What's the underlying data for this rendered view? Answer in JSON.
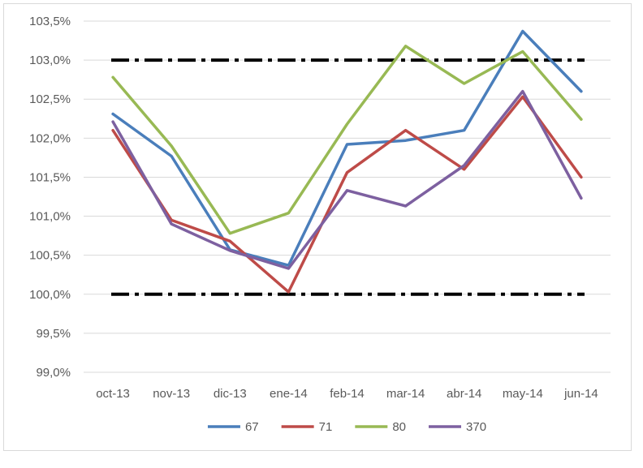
{
  "chart_data": {
    "type": "line",
    "title": "",
    "xlabel": "",
    "ylabel": "",
    "categories": [
      "oct-13",
      "nov-13",
      "dic-13",
      "ene-14",
      "feb-14",
      "mar-14",
      "abr-14",
      "may-14",
      "jun-14"
    ],
    "ylim": [
      99.0,
      103.5
    ],
    "yticks": [
      99.0,
      99.5,
      100.0,
      100.5,
      101.0,
      101.5,
      102.0,
      102.5,
      103.0,
      103.5
    ],
    "ytick_labels": [
      "99,0%",
      "99,5%",
      "100,0%",
      "100,5%",
      "101,0%",
      "101,5%",
      "102,0%",
      "102,5%",
      "103,0%",
      "103,5%"
    ],
    "grid": true,
    "legend_position": "bottom",
    "reference_lines": [
      {
        "value": 103.0,
        "color": "#000000",
        "style": "dash-dot"
      },
      {
        "value": 100.0,
        "color": "#000000",
        "style": "dash-dot"
      }
    ],
    "series": [
      {
        "name": "67",
        "color": "#4a7ebb",
        "values": [
          102.31,
          101.77,
          100.57,
          100.37,
          101.92,
          101.97,
          102.1,
          103.37,
          102.6
        ]
      },
      {
        "name": "71",
        "color": "#be4b48",
        "values": [
          102.1,
          100.95,
          100.68,
          100.03,
          101.56,
          102.1,
          101.6,
          102.53,
          101.5
        ]
      },
      {
        "name": "80",
        "color": "#98b954",
        "values": [
          102.78,
          101.9,
          100.78,
          101.04,
          102.18,
          103.18,
          102.7,
          103.11,
          102.24
        ]
      },
      {
        "name": "370",
        "color": "#7d60a0",
        "values": [
          102.21,
          100.9,
          100.56,
          100.33,
          101.33,
          101.13,
          101.65,
          102.6,
          101.23
        ]
      }
    ]
  }
}
